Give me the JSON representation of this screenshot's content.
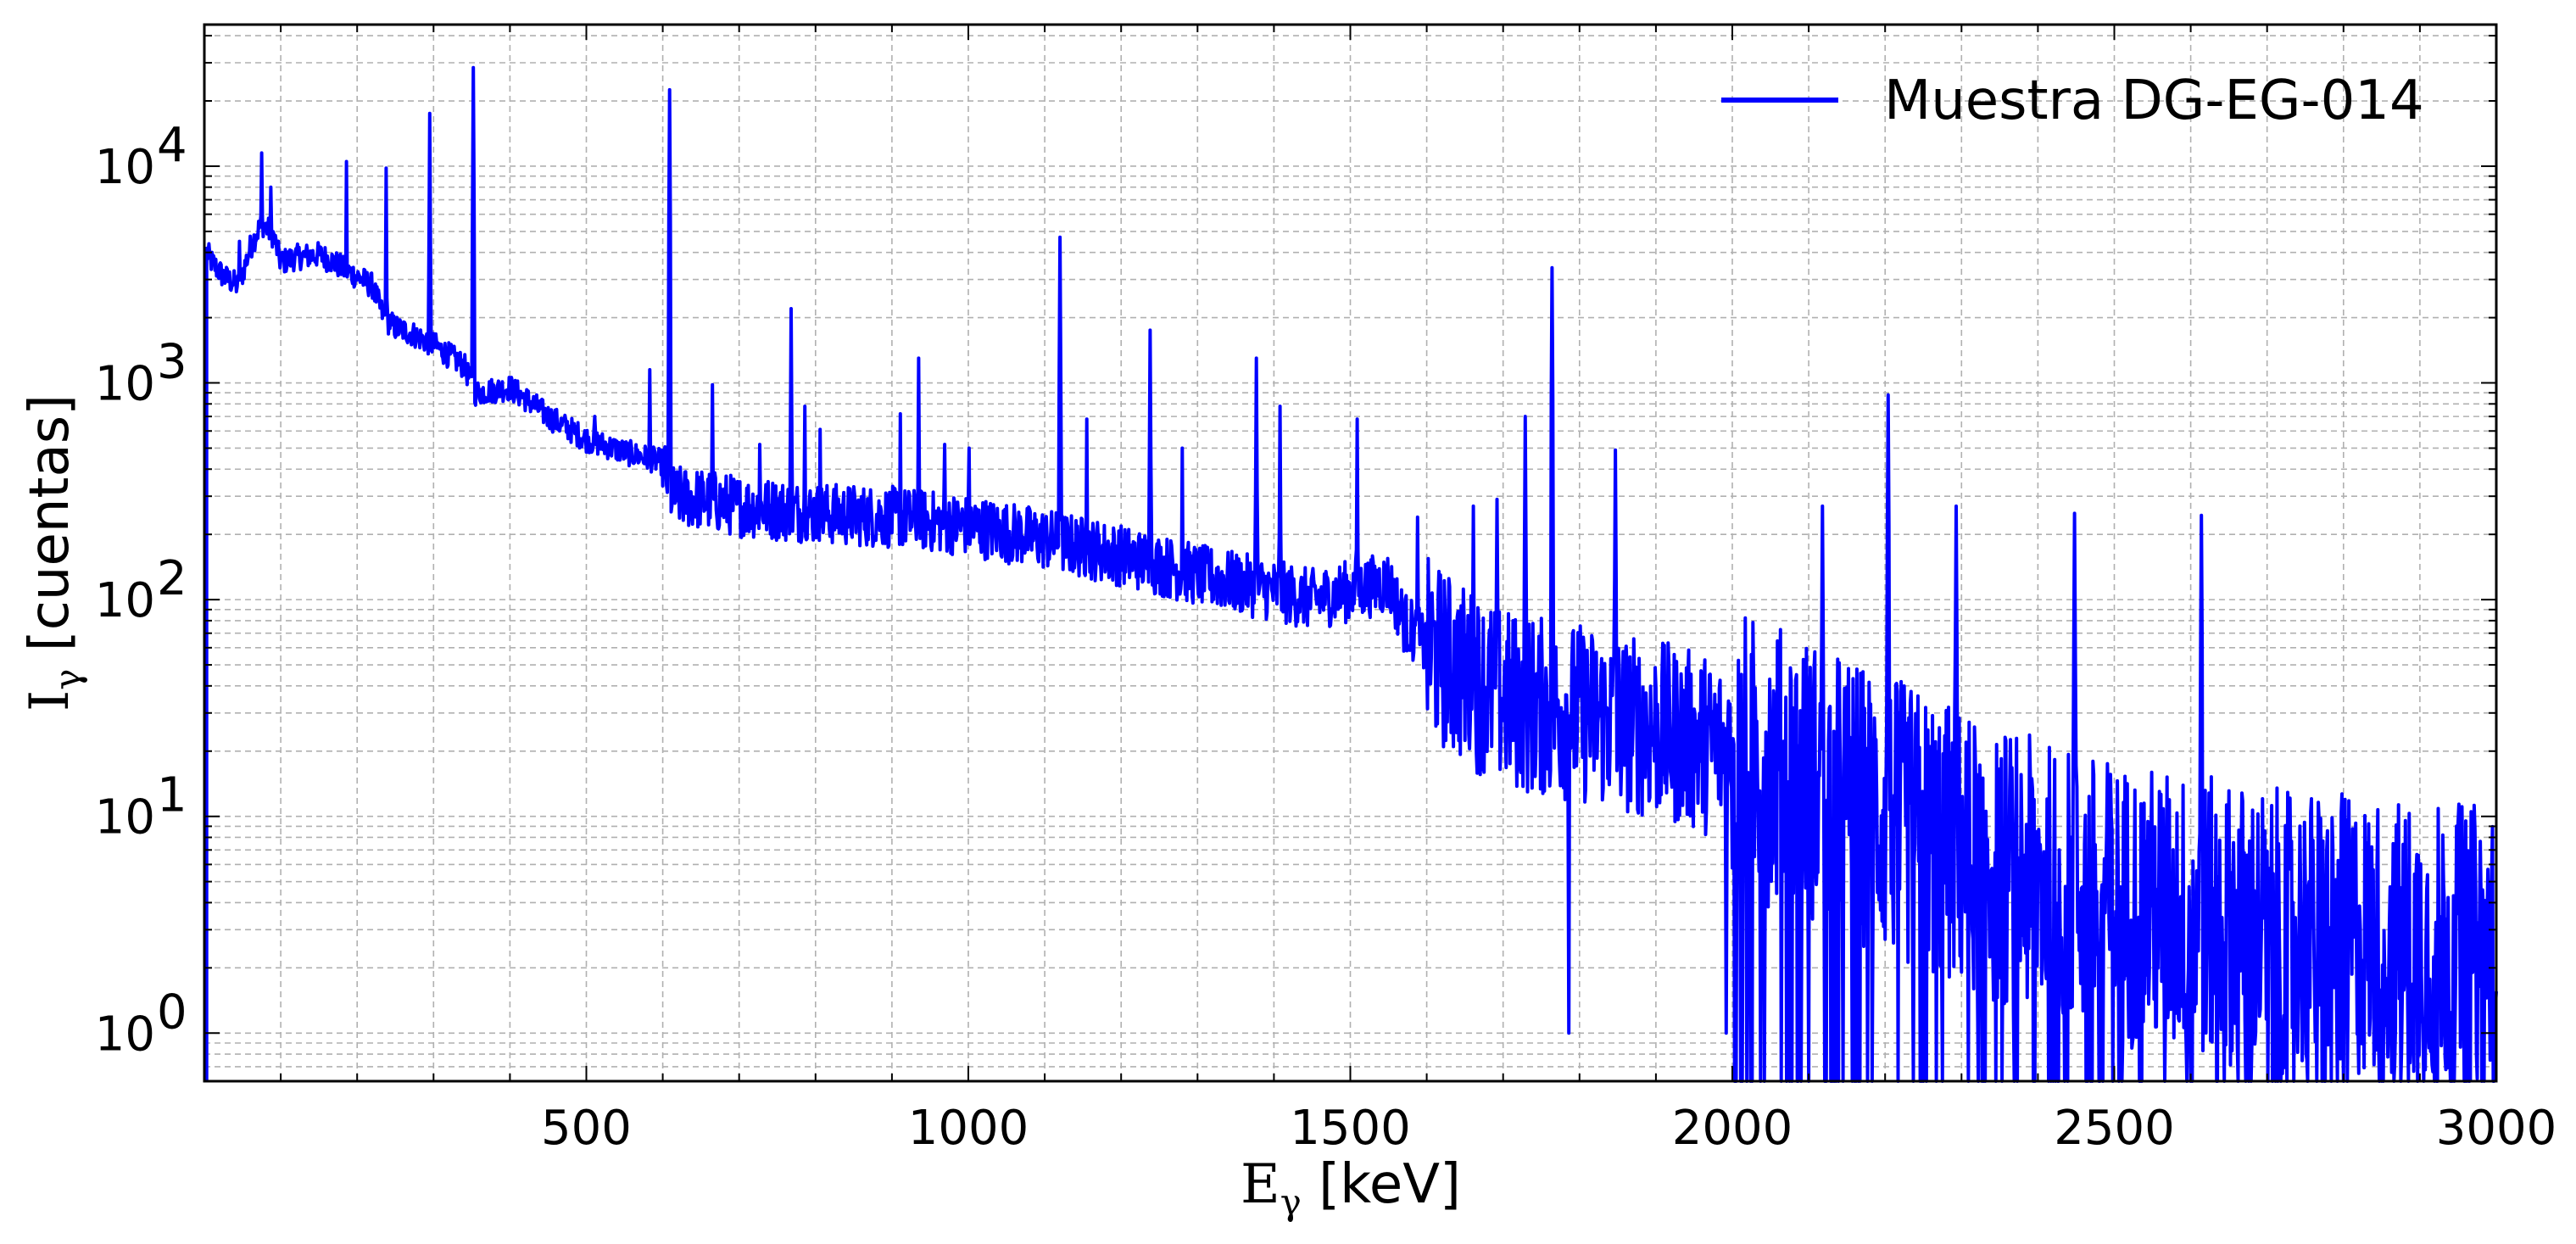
{
  "chart_data": {
    "type": "line",
    "xlabel": {
      "base": "E",
      "sub": "γ",
      "unit": " [keV]"
    },
    "ylabel": {
      "base": "I",
      "sub": "γ",
      "unit": " [cuentas]"
    },
    "xlim": [
      0,
      3000
    ],
    "ylim": [
      0.6,
      45000
    ],
    "yscale": "log",
    "grid": true,
    "legend_position": "top-right",
    "x_ticks": [
      "500",
      "1000",
      "1500",
      "2000",
      "2500",
      "3000"
    ],
    "x_tick_values": [
      500,
      1000,
      1500,
      2000,
      2500,
      3000
    ],
    "y_ticks": [
      {
        "base": "10",
        "exp": "0",
        "value": 1
      },
      {
        "base": "10",
        "exp": "1",
        "value": 10
      },
      {
        "base": "10",
        "exp": "2",
        "value": 100
      },
      {
        "base": "10",
        "exp": "3",
        "value": 1000
      },
      {
        "base": "10",
        "exp": "4",
        "value": 10000
      }
    ],
    "series": [
      {
        "name": "Muestra DG-EG-014",
        "color": "#0000ff",
        "continuum": {
          "x": [
            3,
            10,
            25,
            45,
            60,
            75,
            90,
            100,
            120,
            150,
            170,
            185,
            200,
            220,
            235,
            250,
            270,
            300,
            340,
            355,
            400,
            430,
            450,
            500,
            550,
            600,
            612,
            650,
            700,
            800,
            900,
            1000,
            1100,
            1200,
            1300,
            1400,
            1450,
            1500,
            1550,
            1570,
            1600,
            1650,
            1700,
            1750,
            1800,
            1900,
            2000,
            2100,
            2200,
            2300,
            2400,
            2500,
            2600,
            2700,
            2800,
            2900,
            3000
          ],
          "y": [
            4000,
            3600,
            3100,
            2800,
            4200,
            5500,
            4800,
            3600,
            3800,
            3900,
            3600,
            3300,
            3100,
            2800,
            2000,
            1800,
            1700,
            1500,
            1200,
            900,
            950,
            800,
            700,
            550,
            480,
            430,
            300,
            290,
            270,
            250,
            240,
            220,
            190,
            160,
            130,
            110,
            100,
            110,
            120,
            80,
            60,
            45,
            35,
            32,
            30,
            25,
            20,
            15,
            10,
            7,
            5,
            4,
            3.5,
            3,
            2.8,
            2.6,
            2.5
          ]
        },
        "peaks": {
          "x": [
            46,
            75,
            87,
            186,
            238,
            295,
            352,
            609,
            1120,
            1238,
            768,
            583,
            511,
            665,
            935,
            911,
            1377,
            1408,
            1509,
            1764,
            1729,
            1847,
            2204,
            2118,
            2293,
            2448,
            2614,
            1155,
            969,
            1001,
            727,
            786,
            806,
            1280,
            1661,
            1588,
            1692
          ],
          "y": [
            4500,
            11500,
            8000,
            10500,
            9800,
            17500,
            28500,
            22500,
            4700,
            1750,
            2200,
            1150,
            700,
            980,
            1300,
            720,
            1300,
            780,
            680,
            3400,
            700,
            490,
            880,
            270,
            270,
            250,
            245,
            680,
            520,
            500,
            520,
            780,
            610,
            500,
            270,
            240,
            290
          ]
        },
        "dips": {
          "x": [
            1786,
            1992,
            2075,
            2090,
            2130,
            2160,
            2250
          ],
          "y": [
            1,
            1,
            0.6,
            0.6,
            0.6,
            0.6,
            0.6
          ]
        }
      }
    ]
  }
}
